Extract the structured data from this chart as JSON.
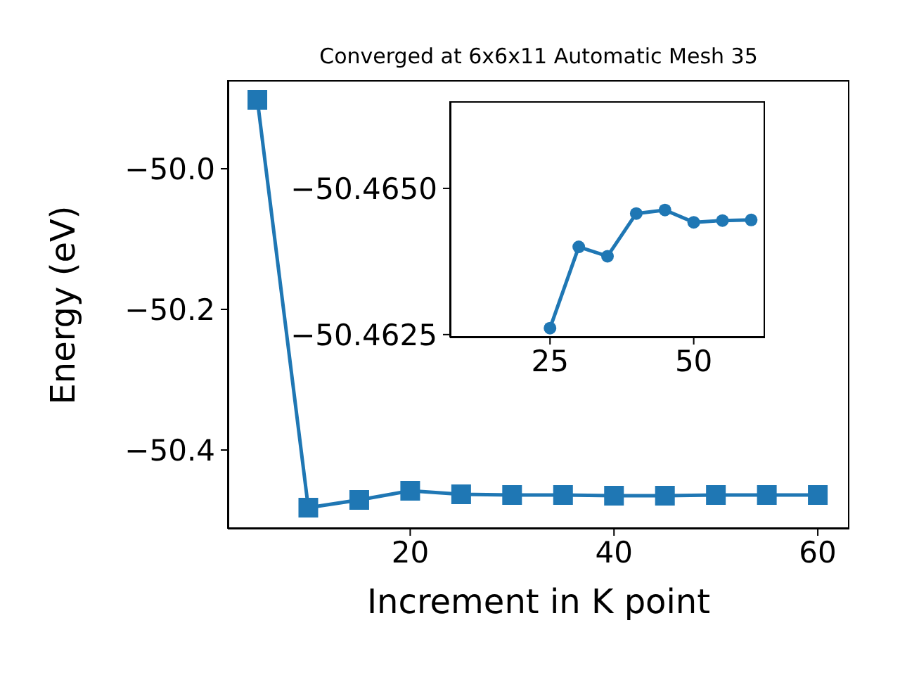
{
  "chart_data": [
    {
      "type": "line",
      "title": "Converged at 6x6x11 Automatic Mesh 35",
      "xlabel": "Increment in K point",
      "ylabel": "Energy (eV)",
      "x": [
        5,
        10,
        15,
        20,
        25,
        30,
        35,
        40,
        45,
        50,
        55,
        60
      ],
      "series": [
        {
          "color": "#1f77b4",
          "values": [
            -49.902,
            -50.482,
            -50.471,
            -50.458,
            -50.463,
            -50.464,
            -50.464,
            -50.465,
            -50.465,
            -50.464,
            -50.464,
            -50.464
          ]
        }
      ],
      "xlim": [
        2.1,
        63.1
      ],
      "xticks": [
        20,
        40,
        60
      ],
      "ylim": [
        -50.512,
        -49.874
      ],
      "yticks": [
        {
          "value": -50.4,
          "label": "−50.4"
        },
        {
          "value": -50.2,
          "label": "−50.2"
        },
        {
          "value": -50.0,
          "label": "−50.0"
        }
      ],
      "marker": "square",
      "line_style": "solid"
    },
    {
      "type": "line",
      "x": [
        25,
        30,
        35,
        40,
        45,
        50,
        55,
        60
      ],
      "series": [
        {
          "color": "#1f77b4",
          "values": [
            -50.46261,
            -50.464,
            -50.46384,
            -50.46457,
            -50.46463,
            -50.46442,
            -50.46445,
            -50.46446
          ]
        }
      ],
      "xlim": [
        7.6,
        62.4
      ],
      "xticks": [
        25,
        50
      ],
      "ylim": [
        -50.46245,
        -50.46649
      ],
      "yticks": [
        {
          "value": -50.4625,
          "label": "−50.4625"
        },
        {
          "value": -50.465,
          "label": "−50.4650"
        }
      ],
      "marker": "circle",
      "line_style": "solid"
    }
  ]
}
